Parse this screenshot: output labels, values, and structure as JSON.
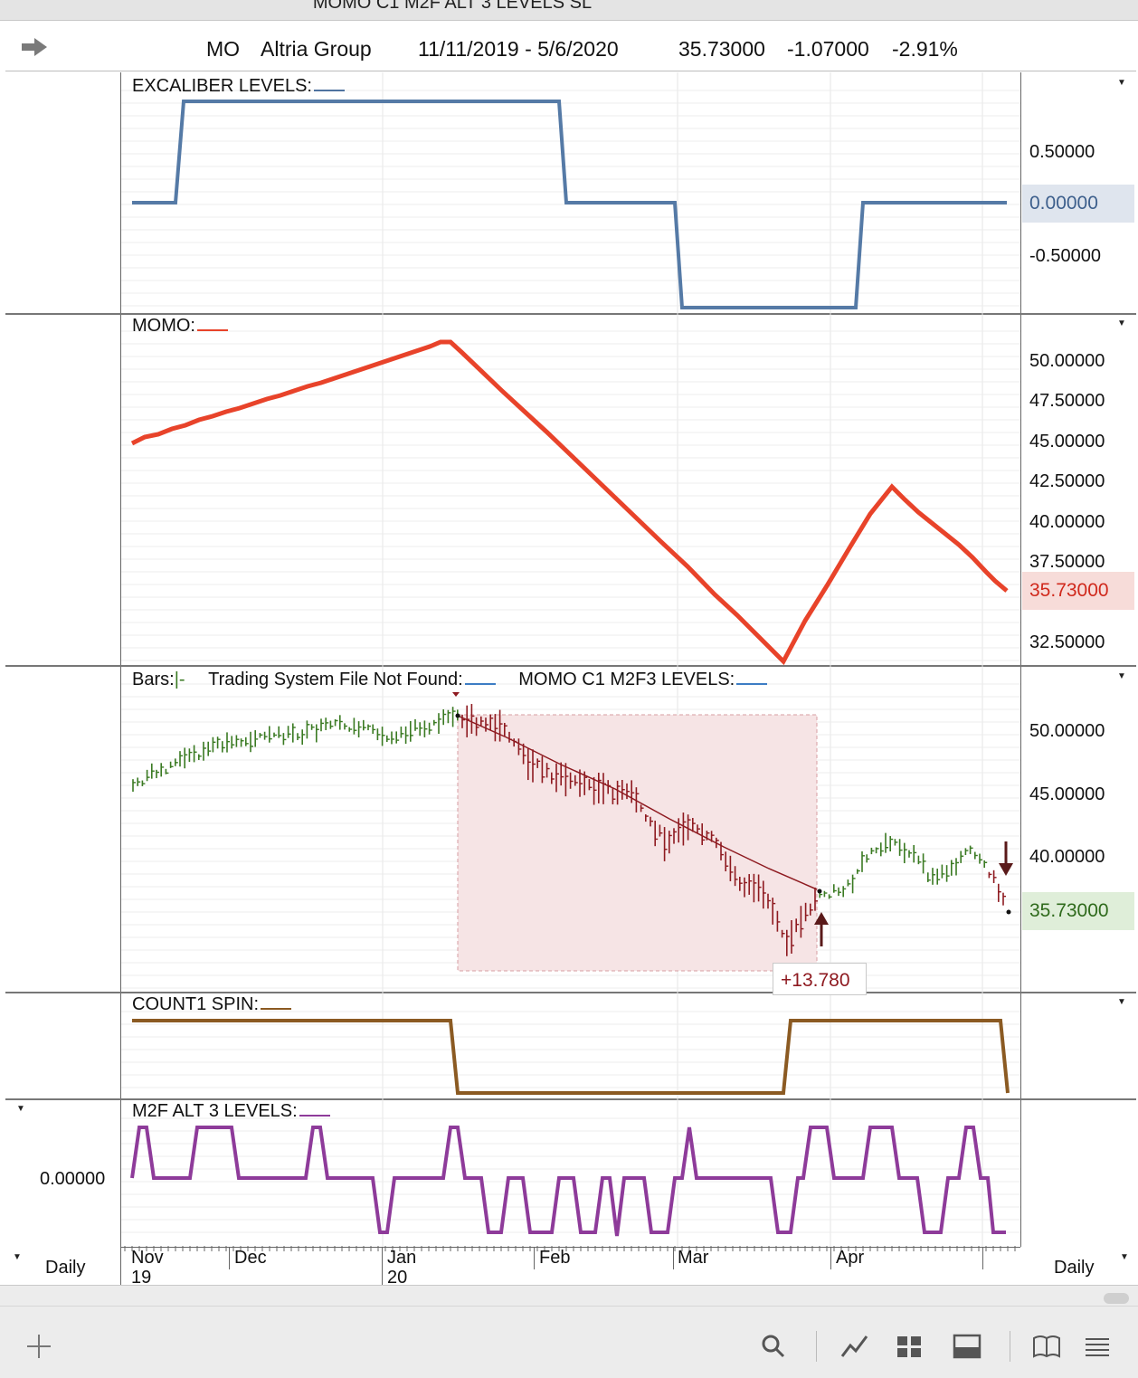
{
  "window": {
    "title": "MOMO C1 M2F ALT 3 LEVELS  SL"
  },
  "header": {
    "symbol": "MO",
    "name": "Altria Group",
    "date_range": "11/11/2019 - 5/6/2020",
    "last": "35.73000",
    "change": "-1.07000",
    "change_pct": "-2.91%"
  },
  "panes": {
    "excaliber": {
      "label": "EXCALIBER LEVELS:",
      "color": "#4f73a0",
      "axis": [
        "0.50000",
        "0.00000",
        "-0.50000"
      ],
      "last_value": "0.00000",
      "last_bg": "#dfe5ee"
    },
    "momo": {
      "label": "MOMO:",
      "color": "#e8432a",
      "axis": [
        "50.00000",
        "47.50000",
        "45.00000",
        "42.50000",
        "40.00000",
        "37.50000",
        "32.50000"
      ],
      "last_value": "35.73000",
      "last_bg": "#f7dcd9",
      "last_color": "#d0291c"
    },
    "bars": {
      "label_bars": "Bars:",
      "label_bars_sym": "|-",
      "label_trading": "Trading System File Not Found:",
      "label_levels": "MOMO C1 M2F3 LEVELS:",
      "axis": [
        "50.00000",
        "45.00000",
        "40.00000"
      ],
      "last_value": "35.73000",
      "last_bg": "#dfeed9",
      "trade_label": "+13.780",
      "up_color": "#3a7a22",
      "down_color": "#8e1a20"
    },
    "count1": {
      "label": "COUNT1 SPIN:",
      "color": "#8b5a22"
    },
    "m2f": {
      "label": "M2F ALT 3 LEVELS:",
      "color": "#8e3b9a",
      "axis": [
        "0.00000"
      ]
    }
  },
  "xaxis": {
    "months": [
      "Nov",
      "Dec",
      "Jan",
      "Feb",
      "Mar",
      "Apr"
    ],
    "years": [
      "19",
      "20"
    ],
    "left_period": "Daily",
    "right_period": "Daily"
  },
  "footer": {
    "icons": [
      "add-icon",
      "search-icon",
      "line-chart-icon",
      "grid-layout-icon",
      "panel-layout-icon",
      "book-icon",
      "menu-icon"
    ]
  }
}
